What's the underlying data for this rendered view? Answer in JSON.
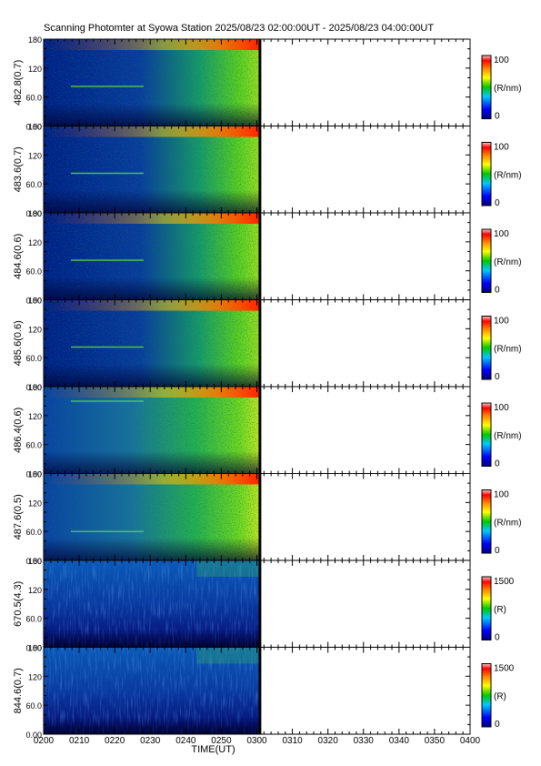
{
  "title": "Scanning Photomter at Syowa Station  2025/08/23 02:00:00UT - 2025/08/23 04:00:00UT",
  "colors": {
    "frame": "#000000",
    "data_low": "#000070",
    "data_mid": "#00b060",
    "data_high": "#ff3020"
  },
  "chart_data": {
    "type": "heatmap",
    "xlabel": "TIME(UT)",
    "x_ticks": [
      "0200",
      "0210",
      "0220",
      "0230",
      "0240",
      "0250",
      "0300",
      "0310",
      "0320",
      "0330",
      "0340",
      "0350",
      "0400"
    ],
    "xlim": [
      "0200",
      "0400"
    ],
    "data_end_time": "0301",
    "y_ticks": [
      "0.00",
      "60.0",
      "120",
      "180"
    ],
    "ylim": [
      0,
      180
    ],
    "panels": [
      {
        "label": "482.8(0.7)",
        "cbar_max": "100",
        "cbar_min": "0",
        "unit": "(R/nm)",
        "style": "hbeta",
        "arc_elev": 82
      },
      {
        "label": "483.6(0.7)",
        "cbar_max": "100",
        "cbar_min": "0",
        "unit": "(R/nm)",
        "style": "hbeta",
        "arc_elev": 82
      },
      {
        "label": "484.6(0.6)",
        "cbar_max": "100",
        "cbar_min": "0",
        "unit": "(R/nm)",
        "style": "hbeta",
        "arc_elev": 82
      },
      {
        "label": "485.6(0.6)",
        "cbar_max": "100",
        "cbar_min": "0",
        "unit": "(R/nm)",
        "style": "hbeta",
        "arc_elev": 82
      },
      {
        "label": "486.4(0.6)",
        "cbar_max": "100",
        "cbar_min": "0",
        "unit": "(R/nm)",
        "style": "bright",
        "arc_elev": 150
      },
      {
        "label": "487.6(0.5)",
        "cbar_max": "100",
        "cbar_min": "0",
        "unit": "(R/nm)",
        "style": "bright",
        "arc_elev": 60
      },
      {
        "label": "670.5(4.3)",
        "cbar_max": "1500",
        "cbar_min": "0",
        "unit": "(R)",
        "style": "blue"
      },
      {
        "label": "844.6(0.7)",
        "cbar_max": "1500",
        "cbar_min": "0",
        "unit": "(R)",
        "style": "blue"
      }
    ]
  }
}
